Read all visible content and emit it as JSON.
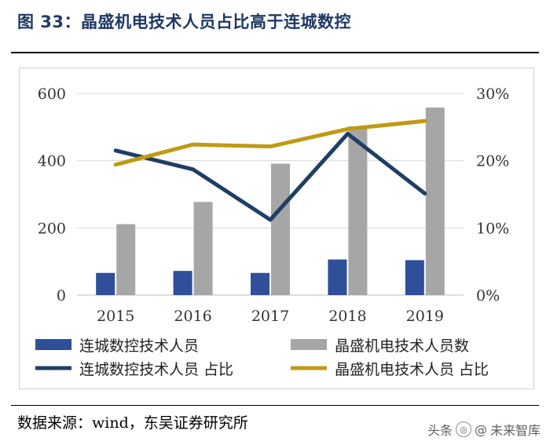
{
  "header": {
    "title": "图 33：晶盛机电技术人员占比高于连城数控"
  },
  "footer": {
    "source": "数据来源：wind，东吴证券研究所"
  },
  "watermark": {
    "prefix": "头条",
    "at": "@",
    "name": "未来智库",
    "icon": "swirl-icon"
  },
  "colors": {
    "bar1": "#2f4f9a",
    "bar2": "#a6a6a6",
    "line1": "#1f3e66",
    "line2": "#c09a12",
    "title": "#1f3864"
  },
  "chart_data": {
    "type": "bar",
    "title": "",
    "categories": [
      "2015",
      "2016",
      "2017",
      "2018",
      "2019"
    ],
    "ylim": [
      0,
      600
    ],
    "yticks": [
      "0",
      "200",
      "400",
      "600"
    ],
    "y2lim": [
      0,
      0.3
    ],
    "y2ticks": [
      "0%",
      "10%",
      "20%",
      "30%"
    ],
    "series": [
      {
        "name": "连城数控技术人员",
        "kind": "bar",
        "axis": "left",
        "values": [
          66,
          72,
          66,
          106,
          104
        ]
      },
      {
        "name": "晶盛机电技术人员数",
        "kind": "bar",
        "axis": "left",
        "values": [
          211,
          277,
          391,
          502,
          558
        ]
      },
      {
        "name": "连城数控技术人员 占比",
        "kind": "line",
        "axis": "right",
        "values": [
          0.215,
          0.187,
          0.112,
          0.24,
          0.151
        ]
      },
      {
        "name": "晶盛机电技术人员 占比",
        "kind": "line",
        "axis": "right",
        "values": [
          0.194,
          0.224,
          0.221,
          0.247,
          0.259
        ]
      }
    ]
  }
}
